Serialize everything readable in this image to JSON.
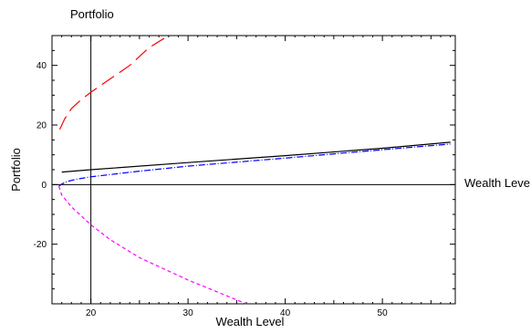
{
  "chart_data": {
    "type": "line",
    "title": "Portfolio",
    "xlabel": "Wealth Level",
    "ylabel": "Portfolio",
    "axis_end_label": "Wealth Leve",
    "xlim": [
      16,
      57.5
    ],
    "ylim": [
      -40,
      50
    ],
    "x_ticks": [
      20,
      30,
      40,
      50
    ],
    "y_ticks": [
      -20,
      0,
      20,
      40
    ],
    "y_tick_labels": [
      "-20",
      "0",
      "20",
      "40"
    ],
    "vertical_line_x": 20,
    "grid": false,
    "series": [
      {
        "color": "#ff0000",
        "style": "long-dash",
        "points": [
          [
            16.8,
            18.5
          ],
          [
            17.3,
            22
          ],
          [
            18,
            25.5
          ],
          [
            19,
            28.5
          ],
          [
            20,
            31
          ],
          [
            22,
            35.5
          ],
          [
            24,
            40
          ],
          [
            26,
            46
          ],
          [
            28,
            50
          ]
        ]
      },
      {
        "color": "#000000",
        "style": "solid",
        "points": [
          [
            17,
            4.2
          ],
          [
            20,
            5
          ],
          [
            30,
            7.4
          ],
          [
            40,
            9.7
          ],
          [
            50,
            12.2
          ],
          [
            57,
            14.2
          ]
        ]
      },
      {
        "color": "#0000ff",
        "style": "dash-dot",
        "points": [
          [
            16.7,
            -0.6
          ],
          [
            17,
            0.2
          ],
          [
            17.5,
            1
          ],
          [
            18.5,
            1.8
          ],
          [
            20,
            2.6
          ],
          [
            25,
            4.5
          ],
          [
            30,
            6.2
          ],
          [
            40,
            8.9
          ],
          [
            50,
            11.7
          ],
          [
            57,
            13.6
          ]
        ]
      },
      {
        "color": "#ff00ff",
        "style": "short-dash",
        "points": [
          [
            16.7,
            -0.6
          ],
          [
            17,
            -3.5
          ],
          [
            18,
            -7.5
          ],
          [
            20,
            -13.5
          ],
          [
            22,
            -18.5
          ],
          [
            25,
            -24.5
          ],
          [
            30,
            -32
          ],
          [
            36,
            -40
          ]
        ]
      }
    ]
  }
}
